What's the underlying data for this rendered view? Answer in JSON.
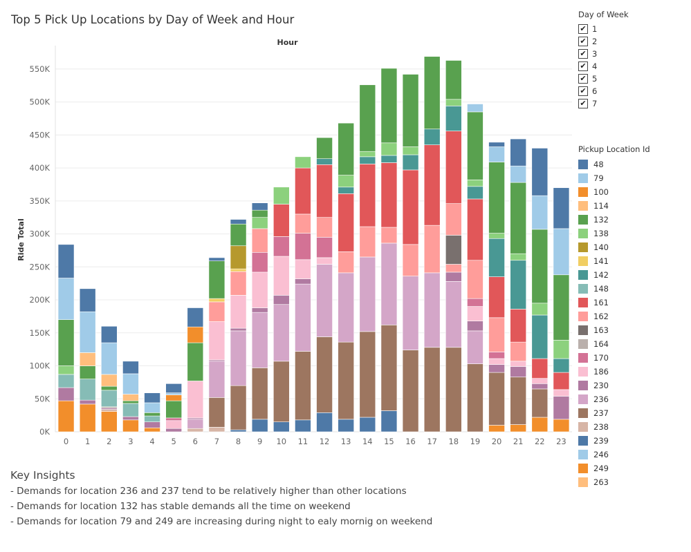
{
  "title": "Top 5 Pick Up Locations by Day of Week and Hour",
  "day_of_week_filter": {
    "title": "Day of Week",
    "check_glyph": "✔",
    "items": [
      {
        "label": "1",
        "checked": true
      },
      {
        "label": "2",
        "checked": true
      },
      {
        "label": "3",
        "checked": true
      },
      {
        "label": "4",
        "checked": true
      },
      {
        "label": "5",
        "checked": true
      },
      {
        "label": "6",
        "checked": true
      },
      {
        "label": "7",
        "checked": true
      }
    ]
  },
  "pickup_legend": {
    "title": "Pickup Location Id",
    "items": [
      {
        "id": "48",
        "color": "#4e79a7"
      },
      {
        "id": "79",
        "color": "#a0cbe8"
      },
      {
        "id": "100",
        "color": "#f28e2b"
      },
      {
        "id": "114",
        "color": "#ffbe7d"
      },
      {
        "id": "132",
        "color": "#59a14f"
      },
      {
        "id": "138",
        "color": "#8cd17d"
      },
      {
        "id": "140",
        "color": "#b6992d"
      },
      {
        "id": "141",
        "color": "#f1ce63"
      },
      {
        "id": "142",
        "color": "#499894"
      },
      {
        "id": "148",
        "color": "#86bcb6"
      },
      {
        "id": "161",
        "color": "#e15759"
      },
      {
        "id": "162",
        "color": "#ff9d9a"
      },
      {
        "id": "163",
        "color": "#79706e"
      },
      {
        "id": "164",
        "color": "#bab0ac"
      },
      {
        "id": "170",
        "color": "#d37295"
      },
      {
        "id": "186",
        "color": "#fabfd2"
      },
      {
        "id": "230",
        "color": "#b07aa1"
      },
      {
        "id": "236",
        "color": "#d4a6c8"
      },
      {
        "id": "237",
        "color": "#9d7660"
      },
      {
        "id": "238",
        "color": "#d7b5a6"
      },
      {
        "id": "239",
        "color": "#4e79a7"
      },
      {
        "id": "246",
        "color": "#a0cbe8"
      },
      {
        "id": "249",
        "color": "#f28e2b"
      },
      {
        "id": "263",
        "color": "#ffbe7d"
      }
    ]
  },
  "chart_data": {
    "type": "bar",
    "stacked": true,
    "title": "",
    "top_axis_label": "Hour",
    "xlabel": "",
    "ylabel": "Ride Total",
    "ylim": [
      0,
      575000
    ],
    "yticks": [
      0,
      50000,
      100000,
      150000,
      200000,
      250000,
      300000,
      350000,
      400000,
      450000,
      500000,
      550000
    ],
    "ytick_labels": [
      "0K",
      "50K",
      "100K",
      "150K",
      "200K",
      "250K",
      "300K",
      "350K",
      "400K",
      "450K",
      "500K",
      "550K"
    ],
    "grid": true,
    "legend_position": "right",
    "categories": [
      "0",
      "1",
      "2",
      "3",
      "4",
      "5",
      "6",
      "7",
      "8",
      "9",
      "10",
      "11",
      "12",
      "13",
      "14",
      "15",
      "16",
      "17",
      "18",
      "19",
      "20",
      "21",
      "22",
      "23"
    ],
    "stacks": [
      [
        [
          "249",
          47000
        ],
        [
          "230",
          20000
        ],
        [
          "148",
          20000
        ],
        [
          "138",
          13000
        ],
        [
          "132",
          70000
        ],
        [
          "79",
          63000
        ],
        [
          "48",
          51000
        ]
      ],
      [
        [
          "249",
          42000
        ],
        [
          "230",
          6000
        ],
        [
          "148",
          32000
        ],
        [
          "132",
          20000
        ],
        [
          "114",
          20000
        ],
        [
          "79",
          62000
        ],
        [
          "48",
          35000
        ]
      ],
      [
        [
          "249",
          31000
        ],
        [
          "238",
          3000
        ],
        [
          "230",
          2000
        ],
        [
          "164",
          2000
        ],
        [
          "148",
          25000
        ],
        [
          "132",
          6000
        ],
        [
          "114",
          18000
        ],
        [
          "79",
          48000
        ],
        [
          "48",
          25000
        ]
      ],
      [
        [
          "249",
          18000
        ],
        [
          "230",
          5000
        ],
        [
          "148",
          20000
        ],
        [
          "132",
          4000
        ],
        [
          "114",
          10000
        ],
        [
          "79",
          31000
        ],
        [
          "48",
          19000
        ]
      ],
      [
        [
          "249",
          6000
        ],
        [
          "230",
          9000
        ],
        [
          "148",
          9000
        ],
        [
          "132",
          5000
        ],
        [
          "79",
          15000
        ],
        [
          "48",
          15000
        ]
      ],
      [
        [
          "230",
          5000
        ],
        [
          "186",
          12000
        ],
        [
          "170",
          4000
        ],
        [
          "132",
          26000
        ],
        [
          "100",
          9000
        ],
        [
          "79",
          3000
        ],
        [
          "48",
          14000
        ]
      ],
      [
        [
          "238",
          5000
        ],
        [
          "236",
          14000
        ],
        [
          "230",
          2000
        ],
        [
          "186",
          56000
        ],
        [
          "132",
          58000
        ],
        [
          "100",
          24000
        ],
        [
          "48",
          29000
        ]
      ],
      [
        [
          "238",
          7000
        ],
        [
          "237",
          45000
        ],
        [
          "236",
          55000
        ],
        [
          "230",
          2000
        ],
        [
          "186",
          58000
        ],
        [
          "162",
          30000
        ],
        [
          "141",
          5000
        ],
        [
          "132",
          57000
        ],
        [
          "48",
          5000
        ]
      ],
      [
        [
          "239",
          3000
        ],
        [
          "237",
          67000
        ],
        [
          "236",
          83000
        ],
        [
          "230",
          4000
        ],
        [
          "186",
          50000
        ],
        [
          "162",
          36000
        ],
        [
          "141",
          4000
        ],
        [
          "140",
          35000
        ],
        [
          "132",
          33000
        ],
        [
          "48",
          7000
        ]
      ],
      [
        [
          "239",
          19000
        ],
        [
          "237",
          78000
        ],
        [
          "236",
          84000
        ],
        [
          "230",
          7000
        ],
        [
          "186",
          54000
        ],
        [
          "170",
          30000
        ],
        [
          "162",
          36000
        ],
        [
          "138",
          17000
        ],
        [
          "132",
          11000
        ],
        [
          "48",
          11000
        ]
      ],
      [
        [
          "239",
          15000
        ],
        [
          "237",
          92000
        ],
        [
          "236",
          86000
        ],
        [
          "230",
          14000
        ],
        [
          "186",
          59000
        ],
        [
          "170",
          30000
        ],
        [
          "161",
          49000
        ],
        [
          "138",
          26000
        ]
      ],
      [
        [
          "239",
          18000
        ],
        [
          "237",
          104000
        ],
        [
          "236",
          102000
        ],
        [
          "230",
          8000
        ],
        [
          "186",
          29000
        ],
        [
          "170",
          40000
        ],
        [
          "162",
          29000
        ],
        [
          "161",
          70000
        ],
        [
          "138",
          17000
        ]
      ],
      [
        [
          "239",
          29000
        ],
        [
          "237",
          115000
        ],
        [
          "236",
          110000
        ],
        [
          "186",
          10000
        ],
        [
          "170",
          31000
        ],
        [
          "162",
          30000
        ],
        [
          "161",
          80000
        ],
        [
          "142",
          9000
        ],
        [
          "132",
          32000
        ]
      ],
      [
        [
          "239",
          19000
        ],
        [
          "237",
          117000
        ],
        [
          "236",
          105000
        ],
        [
          "162",
          32000
        ],
        [
          "161",
          88000
        ],
        [
          "142",
          10000
        ],
        [
          "138",
          18000
        ],
        [
          "132",
          79000
        ]
      ],
      [
        [
          "239",
          22000
        ],
        [
          "237",
          130000
        ],
        [
          "236",
          113000
        ],
        [
          "162",
          46000
        ],
        [
          "161",
          95000
        ],
        [
          "142",
          11000
        ],
        [
          "138",
          8000
        ],
        [
          "132",
          101000
        ]
      ],
      [
        [
          "239",
          32000
        ],
        [
          "237",
          130000
        ],
        [
          "236",
          124000
        ],
        [
          "162",
          24000
        ],
        [
          "161",
          98000
        ],
        [
          "142",
          11000
        ],
        [
          "138",
          19000
        ],
        [
          "132",
          113000
        ]
      ],
      [
        [
          "237",
          124000
        ],
        [
          "236",
          112000
        ],
        [
          "162",
          48000
        ],
        [
          "161",
          113000
        ],
        [
          "142",
          23000
        ],
        [
          "138",
          12000
        ],
        [
          "132",
          110000
        ]
      ],
      [
        [
          "237",
          128000
        ],
        [
          "236",
          113000
        ],
        [
          "162",
          72000
        ],
        [
          "161",
          122000
        ],
        [
          "142",
          24000
        ],
        [
          "132",
          110000
        ]
      ],
      [
        [
          "237",
          128000
        ],
        [
          "236",
          100000
        ],
        [
          "230",
          14000
        ],
        [
          "162",
          12000
        ],
        [
          "163",
          44000
        ],
        [
          "162",
          48000
        ],
        [
          "161",
          110000
        ],
        [
          "142",
          38000
        ],
        [
          "138",
          10000
        ],
        [
          "132",
          59000
        ]
      ],
      [
        [
          "237",
          103000
        ],
        [
          "236",
          50000
        ],
        [
          "230",
          15000
        ],
        [
          "186",
          22000
        ],
        [
          "170",
          12000
        ],
        [
          "162",
          58000
        ],
        [
          "161",
          93000
        ],
        [
          "142",
          19000
        ],
        [
          "138",
          10000
        ],
        [
          "132",
          103000
        ],
        [
          "79",
          12000
        ]
      ],
      [
        [
          "249",
          10000
        ],
        [
          "237",
          80000
        ],
        [
          "230",
          12000
        ],
        [
          "186",
          9000
        ],
        [
          "170",
          10000
        ],
        [
          "162",
          52000
        ],
        [
          "161",
          62000
        ],
        [
          "142",
          58000
        ],
        [
          "138",
          8000
        ],
        [
          "132",
          108000
        ],
        [
          "79",
          23000
        ],
        [
          "48",
          7000
        ]
      ],
      [
        [
          "249",
          11000
        ],
        [
          "237",
          72000
        ],
        [
          "230",
          16000
        ],
        [
          "186",
          8000
        ],
        [
          "162",
          29000
        ],
        [
          "161",
          50000
        ],
        [
          "142",
          74000
        ],
        [
          "138",
          10000
        ],
        [
          "132",
          108000
        ],
        [
          "79",
          25000
        ],
        [
          "48",
          41000
        ]
      ],
      [
        [
          "249",
          22000
        ],
        [
          "237",
          43000
        ],
        [
          "230",
          8000
        ],
        [
          "186",
          8000
        ],
        [
          "161",
          30000
        ],
        [
          "142",
          66000
        ],
        [
          "138",
          18000
        ],
        [
          "132",
          112000
        ],
        [
          "79",
          51000
        ],
        [
          "48",
          72000
        ]
      ],
      [
        [
          "249",
          19000
        ],
        [
          "230",
          35000
        ],
        [
          "186",
          10000
        ],
        [
          "161",
          26000
        ],
        [
          "142",
          21000
        ],
        [
          "138",
          28000
        ],
        [
          "132",
          99000
        ],
        [
          "79",
          70000
        ],
        [
          "48",
          62000
        ]
      ]
    ]
  },
  "insights": {
    "heading": "Key Insights",
    "items": [
      "-  Demands for location 236 and 237 tend to be relatively higher than other locations",
      "-  Demands for location 132 has stable demands all the time on weekend",
      "-  Demands for location 79 and 249 are increasing  during night to ealy mornig  on weekend"
    ]
  }
}
